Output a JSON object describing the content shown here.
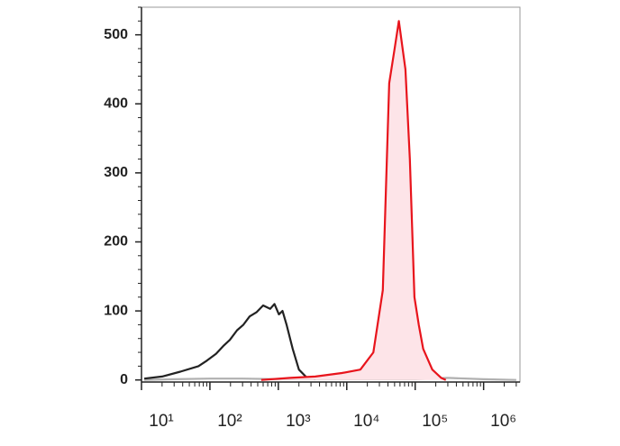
{
  "chart_data": {
    "type": "histogram-overlay",
    "xscale": "log",
    "xlim": [
      10,
      3400000
    ],
    "xticks": [
      {
        "value": 10,
        "label": "10¹"
      },
      {
        "value": 100,
        "label": "10²"
      },
      {
        "value": 1000,
        "label": "10³"
      },
      {
        "value": 10000,
        "label": "10⁴"
      },
      {
        "value": 100000,
        "label": "10⁵"
      },
      {
        "value": 1000000,
        "label": "10⁶"
      }
    ],
    "ylim": [
      -3,
      540
    ],
    "yticks": [
      0,
      100,
      200,
      300,
      400,
      500
    ],
    "series": [
      {
        "color": "#b0b0b0",
        "fill": "none",
        "x": [
          11,
          30,
          100,
          300,
          1000,
          3000,
          10000,
          30000,
          100000,
          300000,
          1000000,
          3000000
        ],
        "values": [
          0,
          1,
          2,
          2,
          1,
          1,
          1,
          1,
          1,
          3,
          1,
          0
        ]
      },
      {
        "color": "#222222",
        "fill": "none",
        "x": [
          11,
          20,
          37,
          68,
          90,
          123,
          160,
          195,
          250,
          309,
          380,
          479,
          600,
          759,
          880,
          1020,
          1150,
          1320,
          1620,
          2000,
          2570,
          3470
        ],
        "values": [
          2,
          5,
          12,
          20,
          28,
          38,
          50,
          58,
          72,
          80,
          92,
          98,
          108,
          103,
          110,
          95,
          100,
          80,
          45,
          15,
          4,
          1
        ]
      },
      {
        "color": "#e8141c",
        "fill": "#fde4e8",
        "x": [
          562,
          1500,
          3470,
          8500,
          15800,
          24500,
          33600,
          41700,
          50100,
          57800,
          72000,
          83500,
          97700,
          113000,
          131000,
          178000,
          240000,
          280000
        ],
        "values": [
          0,
          3,
          5,
          10,
          15,
          40,
          130,
          430,
          480,
          520,
          450,
          320,
          120,
          80,
          45,
          15,
          3,
          0
        ]
      }
    ]
  }
}
